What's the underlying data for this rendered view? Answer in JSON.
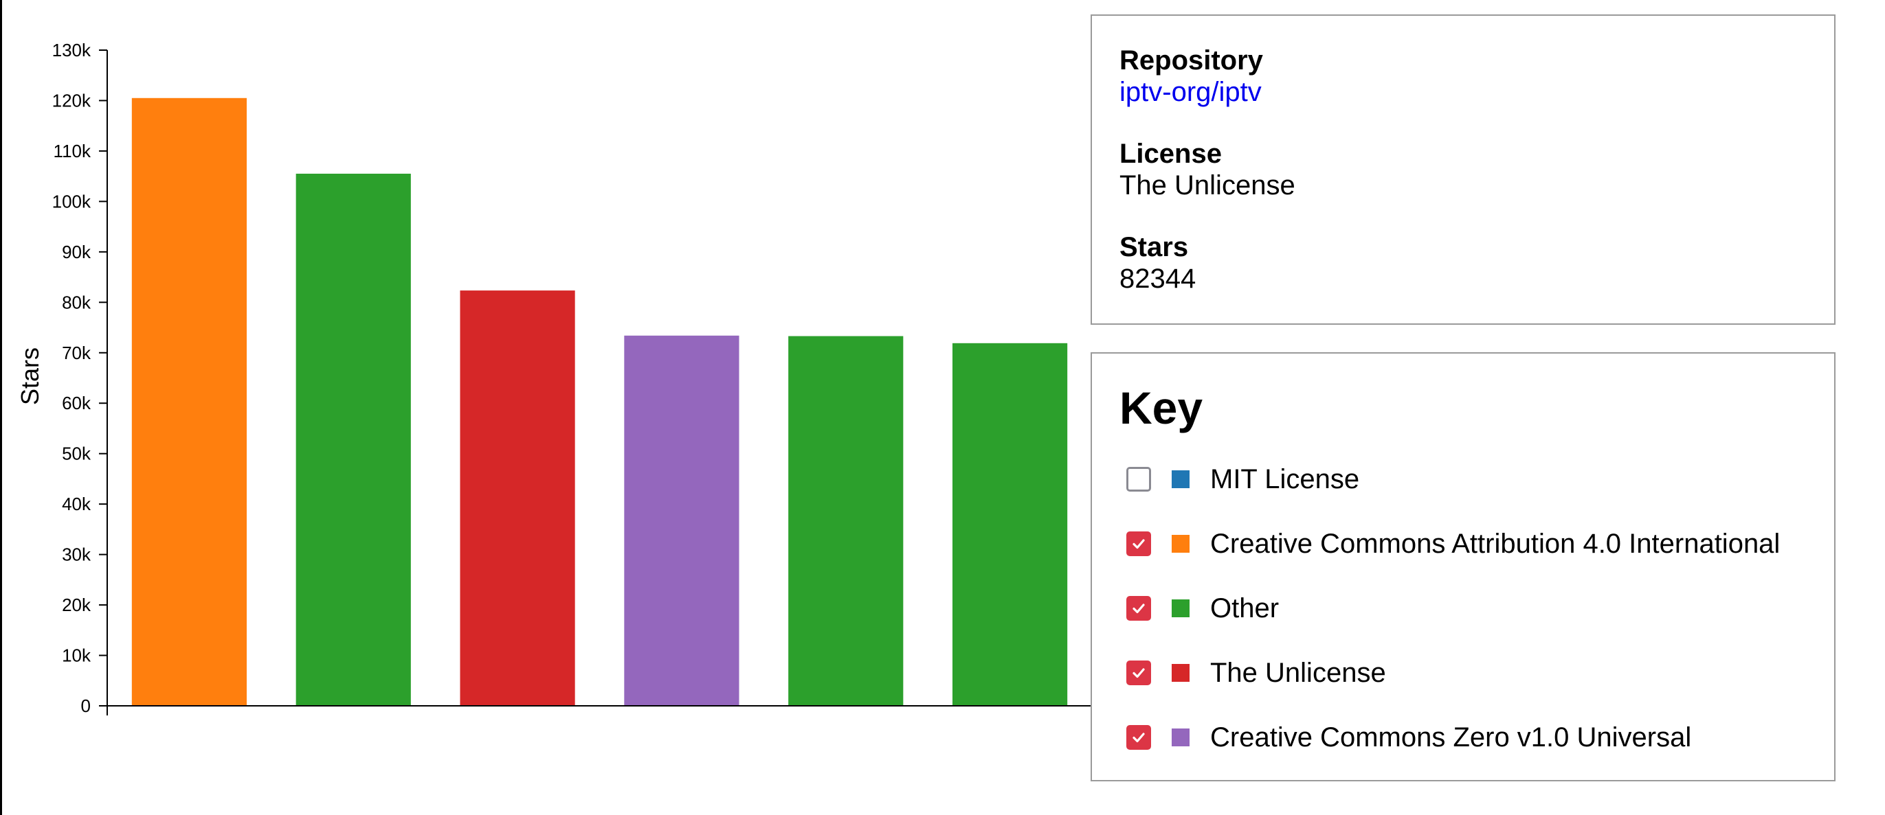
{
  "chart_data": {
    "type": "bar",
    "ylabel": "Stars",
    "xlabel": "",
    "ylim": [
      0,
      130000
    ],
    "yticks": [
      "0",
      "10k",
      "20k",
      "30k",
      "40k",
      "50k",
      "60k",
      "70k",
      "80k",
      "90k",
      "100k",
      "110k",
      "120k",
      "130k"
    ],
    "bars": [
      {
        "value": 120500,
        "license": "Creative Commons Attribution 4.0 International",
        "color": "#ff7f0e"
      },
      {
        "value": 105500,
        "license": "Other",
        "color": "#2ca02c"
      },
      {
        "value": 82344,
        "license": "The Unlicense",
        "color": "#d62728"
      },
      {
        "value": 73400,
        "license": "Creative Commons Zero v1.0 Universal",
        "color": "#9467bd"
      },
      {
        "value": 73300,
        "license": "Other",
        "color": "#2ca02c"
      },
      {
        "value": 71900,
        "license": "Other",
        "color": "#2ca02c"
      }
    ]
  },
  "info": {
    "repository_label": "Repository",
    "repository_value": "iptv-org/iptv",
    "license_label": "License",
    "license_value": "The Unlicense",
    "stars_label": "Stars",
    "stars_value": "82344"
  },
  "key": {
    "title": "Key",
    "items": [
      {
        "label": "MIT License",
        "color": "#1f77b4",
        "checked": false
      },
      {
        "label": "Creative Commons Attribution 4.0 International",
        "color": "#ff7f0e",
        "checked": true
      },
      {
        "label": "Other",
        "color": "#2ca02c",
        "checked": true
      },
      {
        "label": "The Unlicense",
        "color": "#d62728",
        "checked": true
      },
      {
        "label": "Creative Commons Zero v1.0 Universal",
        "color": "#9467bd",
        "checked": true
      }
    ]
  }
}
